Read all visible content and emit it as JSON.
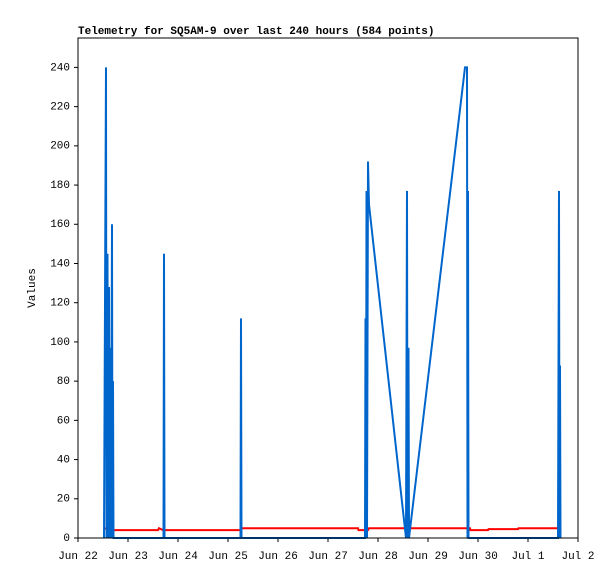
{
  "chart_data": {
    "type": "line",
    "title": "Telemetry for SQ5AM-9 over last 240 hours (584 points)",
    "y_label": "Values",
    "xlim": [
      22,
      32
    ],
    "ylim": [
      0,
      255
    ],
    "xticks": [
      {
        "value": 22,
        "label": "Jun 22"
      },
      {
        "value": 23,
        "label": "Jun 23"
      },
      {
        "value": 24,
        "label": "Jun 24"
      },
      {
        "value": 25,
        "label": "Jun 25"
      },
      {
        "value": 26,
        "label": "Jun 26"
      },
      {
        "value": 27,
        "label": "Jun 27"
      },
      {
        "value": 28,
        "label": "Jun 28"
      },
      {
        "value": 29,
        "label": "Jun 29"
      },
      {
        "value": 30,
        "label": "Jun 30"
      },
      {
        "value": 31,
        "label": "Jul 1"
      },
      {
        "value": 32,
        "label": "Jul 2"
      }
    ],
    "yticks": [
      0,
      20,
      40,
      60,
      80,
      100,
      120,
      140,
      160,
      180,
      200,
      220,
      240
    ],
    "grid": false,
    "series": [
      {
        "color": "#ff0000",
        "x": [
          22.52,
          22.68,
          23.6,
          23.62,
          23.7,
          25.25,
          25.26,
          27.6,
          27.61,
          27.8,
          27.82,
          29.84,
          29.85,
          30.2,
          30.21,
          30.8,
          30.81,
          31.65
        ],
        "values": [
          5,
          4,
          4,
          5,
          4,
          4,
          5,
          5,
          4,
          4,
          5,
          5,
          4,
          4,
          4.5,
          4.5,
          5,
          5
        ]
      },
      {
        "color": "#0066cc",
        "x": [
          22.52,
          22.56,
          22.57,
          22.59,
          22.6,
          22.62,
          22.63,
          22.65,
          22.66,
          22.68,
          22.69,
          22.7,
          22.71,
          23.71,
          23.72,
          23.73,
          25.25,
          25.26,
          25.27,
          27.74,
          27.75,
          27.76,
          27.77,
          27.78,
          27.8,
          27.82,
          28.56,
          28.58,
          28.59,
          28.61,
          28.62,
          29.74,
          29.78,
          29.79,
          29.8,
          29.81,
          31.6,
          31.62,
          31.63,
          31.64,
          31.65
        ],
        "values": [
          0,
          240,
          0,
          145,
          0,
          128,
          0,
          97,
          0,
          160,
          0,
          80,
          0,
          0,
          145,
          0,
          0,
          112,
          0,
          0,
          112,
          0,
          177,
          0,
          192,
          170,
          0,
          177,
          0,
          97,
          0,
          240,
          240,
          0,
          177,
          0,
          0,
          177,
          0,
          88,
          0
        ]
      }
    ]
  }
}
